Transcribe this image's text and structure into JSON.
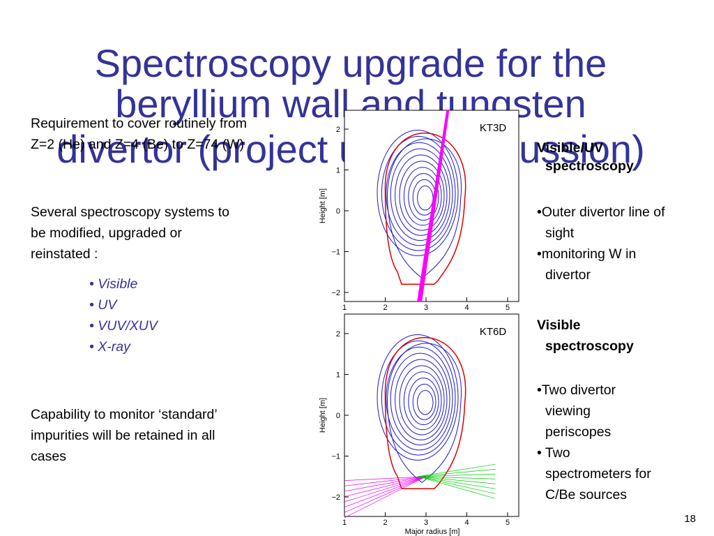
{
  "title": [
    "Spectroscopy upgrade for the",
    "beryllium wall and tungsten",
    "divertor (project under discussion)"
  ],
  "left": {
    "requirement": [
      "Requirement to cover routinely from",
      "Z=2 (He) and Z=4 (Be) to Z=74 (W)"
    ],
    "systems": [
      "Several spectroscopy systems to",
      "be modified, upgraded or",
      "reinstated :"
    ],
    "list": [
      "• Visible",
      "• UV",
      "• VUV/XUV",
      "• X-ray"
    ],
    "capability": [
      "Capability to monitor ‘standard’",
      "impurities will be retained in all",
      "cases"
    ]
  },
  "right": {
    "kt3d": {
      "heading": [
        "Visible/UV",
        "spectroscopy"
      ],
      "bullets": [
        "•Outer divertor line of",
        "sight",
        "•monitoring W in",
        "divertor"
      ]
    },
    "kt6d": {
      "heading": [
        "Visible",
        "spectroscopy"
      ],
      "bullets": [
        "•Two divertor",
        "viewing",
        "periscopes",
        "• Two",
        "spectrometers for",
        "C/Be sources"
      ]
    }
  },
  "plots": [
    {
      "label": "KT3D",
      "ylabel": "Height [m]",
      "xticks": [
        1,
        2,
        3,
        4,
        5
      ],
      "yticks": [
        2,
        1,
        0,
        {
          "value": -1,
          "label": "−1"
        },
        {
          "value": -2,
          "label": "−2"
        }
      ]
    },
    {
      "label": "KT6D",
      "ylabel": "Height [m]",
      "xlabel": "Major radius [m]",
      "xticks": [
        1,
        2,
        3,
        4,
        5
      ],
      "yticks": [
        2,
        1,
        0,
        {
          "value": -1,
          "label": "−1"
        },
        {
          "value": -2,
          "label": "−2"
        }
      ]
    }
  ],
  "page_number": "18"
}
